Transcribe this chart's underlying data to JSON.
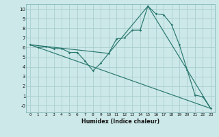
{
  "xlabel": "Humidex (Indice chaleur)",
  "xlim": [
    -0.5,
    23.5
  ],
  "ylim": [
    -0.7,
    10.5
  ],
  "bg_color": "#cce8e8",
  "grid_color": "#aacece",
  "line_color": "#2a7870",
  "line1_x": [
    0,
    1,
    2,
    3,
    4,
    5,
    6,
    7,
    8,
    9,
    10,
    11,
    12,
    13,
    14,
    15,
    16,
    17,
    18,
    19,
    20,
    21,
    22,
    23
  ],
  "line1_y": [
    6.3,
    6.0,
    6.1,
    5.9,
    5.9,
    5.5,
    5.5,
    4.6,
    3.6,
    4.4,
    5.4,
    6.9,
    7.0,
    7.8,
    7.8,
    10.3,
    9.5,
    9.4,
    8.4,
    6.3,
    3.7,
    1.1,
    0.9,
    -0.3
  ],
  "line2_x": [
    0,
    23
  ],
  "line2_y": [
    6.3,
    -0.3
  ],
  "line3_x": [
    0,
    10,
    15,
    20,
    23
  ],
  "line3_y": [
    6.3,
    5.4,
    10.3,
    3.7,
    -0.3
  ],
  "ytick_vals": [
    0,
    1,
    2,
    3,
    4,
    5,
    6,
    7,
    8,
    9,
    10
  ],
  "ytick_labels": [
    "-0",
    "1",
    "2",
    "3",
    "4",
    "5",
    "6",
    "7",
    "8",
    "9",
    "10"
  ],
  "xtick_vals": [
    0,
    1,
    2,
    3,
    4,
    5,
    6,
    7,
    8,
    9,
    10,
    11,
    12,
    13,
    14,
    15,
    16,
    17,
    18,
    19,
    20,
    21,
    22,
    23
  ],
  "xtick_labels": [
    "0",
    "1",
    "2",
    "3",
    "4",
    "5",
    "6",
    "7",
    "8",
    "9",
    "10",
    "11",
    "12",
    "13",
    "14",
    "15",
    "16",
    "17",
    "18",
    "19",
    "20",
    "21",
    "22",
    "23"
  ]
}
